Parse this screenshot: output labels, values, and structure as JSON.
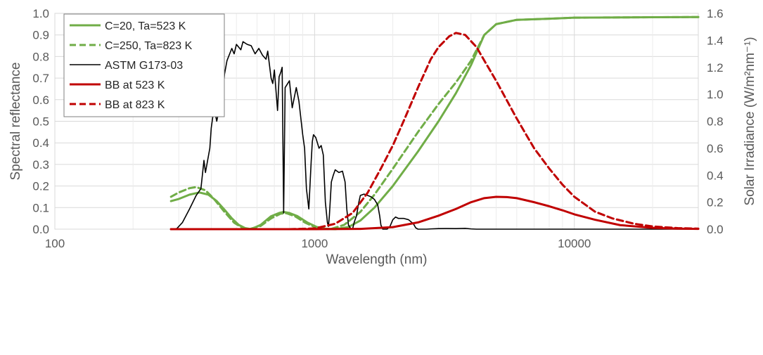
{
  "chart_data": {
    "type": "line",
    "xlabel": "Wavelength (nm)",
    "ylabel": "Spectral reflectance",
    "ylabel_right": "Solar Irradiance (W/m²nm⁻¹)",
    "x_scale": "log",
    "xlim": [
      100,
      30000
    ],
    "ylim": [
      0,
      1.0
    ],
    "ylim_right": [
      0,
      1.6
    ],
    "x_ticks": [
      "100",
      "1000",
      "10000"
    ],
    "y_ticks": [
      "0.0",
      "0.1",
      "0.2",
      "0.3",
      "0.4",
      "0.5",
      "0.6",
      "0.7",
      "0.8",
      "0.9",
      "1.0"
    ],
    "y_ticks_right": [
      "0.0",
      "0.2",
      "0.4",
      "0.6",
      "0.8",
      "1.0",
      "1.2",
      "1.4",
      "1.6"
    ],
    "grid": "major and minor vertical, major horizontal",
    "legend_position": "top-left",
    "series": [
      {
        "name": "C=20, Ta=523 K",
        "axis": "left",
        "color": "#70ad47",
        "dash": "solid",
        "points": [
          [
            280,
            0.13
          ],
          [
            300,
            0.14
          ],
          [
            330,
            0.16
          ],
          [
            360,
            0.17
          ],
          [
            390,
            0.16
          ],
          [
            420,
            0.13
          ],
          [
            450,
            0.09
          ],
          [
            480,
            0.05
          ],
          [
            510,
            0.02
          ],
          [
            540,
            0.005
          ],
          [
            570,
            0
          ],
          [
            620,
            0.02
          ],
          [
            680,
            0.06
          ],
          [
            730,
            0.075
          ],
          [
            760,
            0.08
          ],
          [
            800,
            0.075
          ],
          [
            860,
            0.06
          ],
          [
            940,
            0.03
          ],
          [
            1020,
            0.01
          ],
          [
            1100,
            0.002
          ],
          [
            1200,
            0
          ],
          [
            1350,
            0.01
          ],
          [
            1500,
            0.04
          ],
          [
            1700,
            0.1
          ],
          [
            2000,
            0.2
          ],
          [
            2500,
            0.36
          ],
          [
            3000,
            0.5
          ],
          [
            3500,
            0.63
          ],
          [
            4000,
            0.76
          ],
          [
            4500,
            0.9
          ],
          [
            5000,
            0.95
          ],
          [
            6000,
            0.97
          ],
          [
            8000,
            0.975
          ],
          [
            10000,
            0.98
          ],
          [
            20000,
            0.982
          ],
          [
            30000,
            0.983
          ]
        ]
      },
      {
        "name": "C=250, Ta=823 K",
        "axis": "left",
        "color": "#70ad47",
        "dash": "dashed",
        "points": [
          [
            280,
            0.15
          ],
          [
            300,
            0.17
          ],
          [
            330,
            0.19
          ],
          [
            350,
            0.195
          ],
          [
            380,
            0.18
          ],
          [
            410,
            0.14
          ],
          [
            450,
            0.08
          ],
          [
            490,
            0.03
          ],
          [
            530,
            0.005
          ],
          [
            560,
            0
          ],
          [
            620,
            0.015
          ],
          [
            680,
            0.05
          ],
          [
            740,
            0.072
          ],
          [
            780,
            0.074
          ],
          [
            840,
            0.06
          ],
          [
            920,
            0.03
          ],
          [
            1000,
            0.01
          ],
          [
            1080,
            0.002
          ],
          [
            1150,
            0
          ],
          [
            1300,
            0.02
          ],
          [
            1500,
            0.08
          ],
          [
            1700,
            0.16
          ],
          [
            2000,
            0.28
          ],
          [
            2500,
            0.45
          ],
          [
            3000,
            0.58
          ],
          [
            3500,
            0.68
          ],
          [
            4000,
            0.78
          ],
          [
            4500,
            0.9
          ],
          [
            5000,
            0.95
          ],
          [
            6000,
            0.97
          ],
          [
            8000,
            0.975
          ],
          [
            10000,
            0.98
          ],
          [
            20000,
            0.982
          ],
          [
            30000,
            0.983
          ]
        ]
      },
      {
        "name": "ASTM G173-03",
        "axis": "right",
        "color": "#000000",
        "dash": "solid",
        "points": [
          [
            280,
            0
          ],
          [
            295,
            0.005
          ],
          [
            310,
            0.05
          ],
          [
            330,
            0.15
          ],
          [
            350,
            0.25
          ],
          [
            365,
            0.3
          ],
          [
            375,
            0.51
          ],
          [
            380,
            0.42
          ],
          [
            395,
            0.6
          ],
          [
            400,
            0.75
          ],
          [
            410,
            0.9
          ],
          [
            420,
            0.8
          ],
          [
            425,
            0.85
          ],
          [
            440,
            0.91
          ],
          [
            450,
            1.15
          ],
          [
            460,
            1.25
          ],
          [
            480,
            1.34
          ],
          [
            490,
            1.3
          ],
          [
            500,
            1.37
          ],
          [
            520,
            1.33
          ],
          [
            530,
            1.39
          ],
          [
            550,
            1.37
          ],
          [
            570,
            1.36
          ],
          [
            590,
            1.3
          ],
          [
            610,
            1.34
          ],
          [
            630,
            1.29
          ],
          [
            650,
            1.26
          ],
          [
            660,
            1.32
          ],
          [
            680,
            1.12
          ],
          [
            690,
            1.08
          ],
          [
            700,
            1.18
          ],
          [
            720,
            0.88
          ],
          [
            730,
            1.13
          ],
          [
            740,
            1.16
          ],
          [
            750,
            1.2
          ],
          [
            760,
            0.12
          ],
          [
            770,
            1.05
          ],
          [
            800,
            1.1
          ],
          [
            820,
            0.9
          ],
          [
            850,
            1.05
          ],
          [
            870,
            0.95
          ],
          [
            900,
            0.7
          ],
          [
            915,
            0.6
          ],
          [
            930,
            0.3
          ],
          [
            950,
            0.15
          ],
          [
            970,
            0.5
          ],
          [
            980,
            0.65
          ],
          [
            990,
            0.7
          ],
          [
            1010,
            0.68
          ],
          [
            1040,
            0.6
          ],
          [
            1060,
            0.62
          ],
          [
            1080,
            0.55
          ],
          [
            1100,
            0.2
          ],
          [
            1120,
            0.05
          ],
          [
            1130,
            0.02
          ],
          [
            1140,
            0.1
          ],
          [
            1160,
            0.35
          ],
          [
            1180,
            0.4
          ],
          [
            1200,
            0.44
          ],
          [
            1240,
            0.42
          ],
          [
            1280,
            0.43
          ],
          [
            1310,
            0.35
          ],
          [
            1330,
            0.15
          ],
          [
            1350,
            0.03
          ],
          [
            1380,
            0.001
          ],
          [
            1400,
            0
          ],
          [
            1420,
            0.05
          ],
          [
            1450,
            0.1
          ],
          [
            1480,
            0.2
          ],
          [
            1500,
            0.25
          ],
          [
            1550,
            0.26
          ],
          [
            1600,
            0.25
          ],
          [
            1650,
            0.24
          ],
          [
            1700,
            0.22
          ],
          [
            1750,
            0.18
          ],
          [
            1780,
            0.1
          ],
          [
            1800,
            0.03
          ],
          [
            1830,
            0
          ],
          [
            1900,
            0
          ],
          [
            1950,
            0.02
          ],
          [
            2000,
            0.07
          ],
          [
            2050,
            0.09
          ],
          [
            2100,
            0.08
          ],
          [
            2200,
            0.08
          ],
          [
            2300,
            0.07
          ],
          [
            2400,
            0.04
          ],
          [
            2450,
            0.01
          ],
          [
            2500,
            0
          ],
          [
            2700,
            0
          ],
          [
            2800,
            0.002
          ],
          [
            3000,
            0.004
          ],
          [
            3200,
            0.005
          ],
          [
            3500,
            0.004
          ],
          [
            3800,
            0.006
          ],
          [
            4000,
            0.002
          ],
          [
            4200,
            0
          ],
          [
            30000,
            0
          ]
        ]
      },
      {
        "name": "BB at 523 K",
        "axis": "right",
        "color": "#c00000",
        "dash": "solid",
        "points": [
          [
            280,
            0
          ],
          [
            1000,
            0
          ],
          [
            1500,
            0.002
          ],
          [
            2000,
            0.015
          ],
          [
            2500,
            0.05
          ],
          [
            3000,
            0.1
          ],
          [
            3500,
            0.15
          ],
          [
            4000,
            0.2
          ],
          [
            4500,
            0.23
          ],
          [
            5000,
            0.24
          ],
          [
            5500,
            0.238
          ],
          [
            6000,
            0.23
          ],
          [
            7000,
            0.2
          ],
          [
            8000,
            0.17
          ],
          [
            9000,
            0.14
          ],
          [
            10000,
            0.11
          ],
          [
            12000,
            0.07
          ],
          [
            15000,
            0.03
          ],
          [
            20000,
            0.01
          ],
          [
            25000,
            0.004
          ],
          [
            30000,
            0.002
          ]
        ]
      },
      {
        "name": "BB at 823  K",
        "axis": "right",
        "color": "#c00000",
        "dash": "dashed",
        "points": [
          [
            280,
            0
          ],
          [
            800,
            0
          ],
          [
            1000,
            0.005
          ],
          [
            1200,
            0.04
          ],
          [
            1400,
            0.12
          ],
          [
            1600,
            0.27
          ],
          [
            1800,
            0.45
          ],
          [
            2000,
            0.62
          ],
          [
            2200,
            0.8
          ],
          [
            2500,
            1.05
          ],
          [
            2800,
            1.26
          ],
          [
            3000,
            1.35
          ],
          [
            3300,
            1.43
          ],
          [
            3500,
            1.455
          ],
          [
            3800,
            1.44
          ],
          [
            4200,
            1.35
          ],
          [
            4500,
            1.25
          ],
          [
            5000,
            1.1
          ],
          [
            6000,
            0.82
          ],
          [
            7000,
            0.6
          ],
          [
            8000,
            0.45
          ],
          [
            9000,
            0.33
          ],
          [
            10000,
            0.24
          ],
          [
            12000,
            0.13
          ],
          [
            14000,
            0.08
          ],
          [
            17000,
            0.04
          ],
          [
            20000,
            0.02
          ],
          [
            25000,
            0.008
          ],
          [
            30000,
            0.004
          ]
        ]
      }
    ]
  }
}
